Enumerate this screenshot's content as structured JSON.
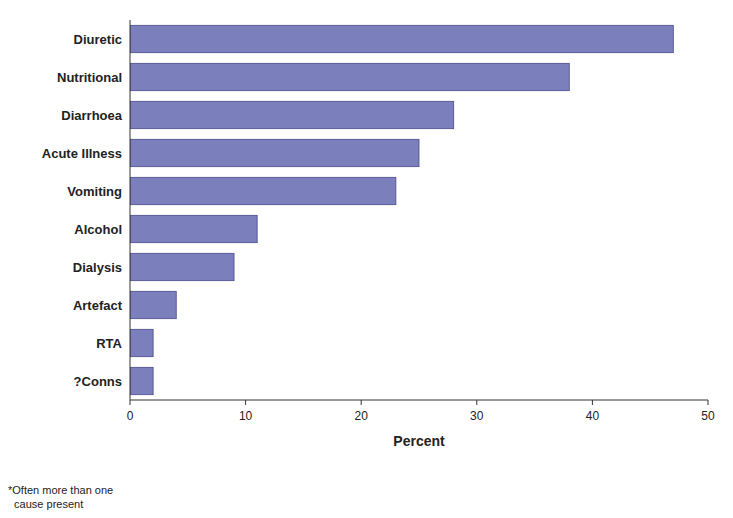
{
  "chart_data": {
    "type": "bar",
    "orientation": "horizontal",
    "categories": [
      "Diuretic",
      "Nutritional",
      "Diarrhoea",
      "Acute Illness",
      "Vomiting",
      "Alcohol",
      "Dialysis",
      "Artefact",
      "RTA",
      "?Conns"
    ],
    "values": [
      47,
      38,
      28,
      25,
      23,
      11,
      9,
      4,
      2,
      2
    ],
    "color": "#7b7fbb",
    "xlabel": "Percent",
    "xlim": [
      0,
      50
    ],
    "xticks": [
      0,
      10,
      20,
      30,
      40,
      50
    ],
    "grid": false,
    "annotations": [
      "*Often more than one\n  cause present"
    ]
  }
}
